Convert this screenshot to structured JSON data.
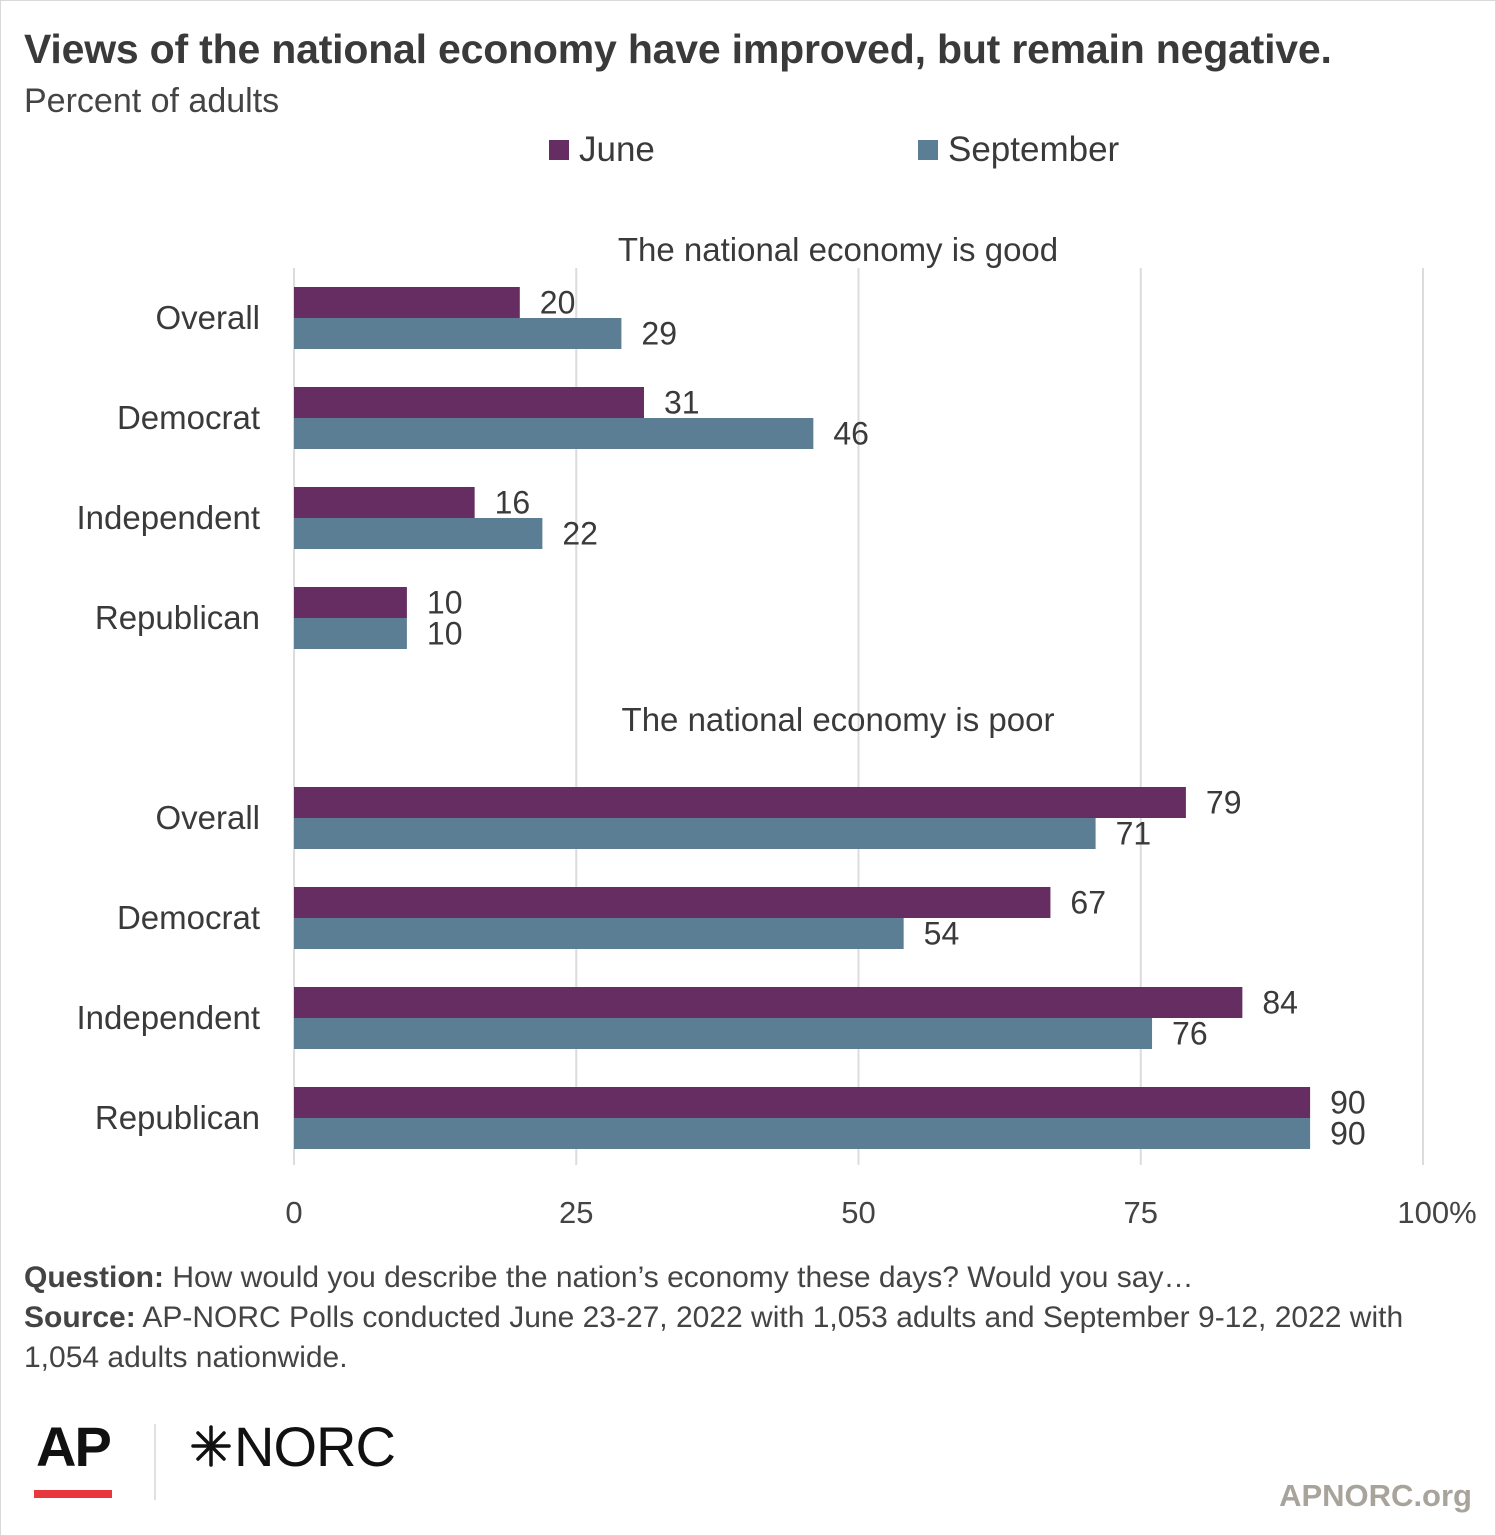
{
  "header": {
    "title": "Views of the national economy have improved, but remain negative.",
    "subtitle": "Percent of adults"
  },
  "colors": {
    "june": "#652d62",
    "september": "#5b7e95",
    "grid": "#dcdcdc",
    "text": "#3a3a3a"
  },
  "chart_data": {
    "type": "bar",
    "orientation": "horizontal",
    "legend": [
      "June",
      "September"
    ],
    "legend_placement": "top",
    "xlim": [
      0,
      100
    ],
    "x_ticks": [
      "0",
      "25",
      "50",
      "75",
      "100%"
    ],
    "grid": true,
    "panels": [
      {
        "label": "The national economy is good",
        "categories": [
          "Overall",
          "Democrat",
          "Independent",
          "Republican"
        ],
        "series": [
          {
            "name": "June",
            "values": [
              20,
              31,
              16,
              10
            ]
          },
          {
            "name": "September",
            "values": [
              29,
              46,
              22,
              10
            ]
          }
        ]
      },
      {
        "label": "The national economy is poor",
        "categories": [
          "Overall",
          "Democrat",
          "Independent",
          "Republican"
        ],
        "series": [
          {
            "name": "June",
            "values": [
              79,
              67,
              84,
              90
            ]
          },
          {
            "name": "September",
            "values": [
              71,
              54,
              76,
              90
            ]
          }
        ]
      }
    ]
  },
  "notes": {
    "question_label": "Question:",
    "question_text": " How would you describe the nation’s economy these days? Would you say…",
    "source_label": "Source:",
    "source_text": " AP-NORC Polls conducted June 23-27, 2022 with 1,053 adults and September 9-12, 2022 with 1,054 adults nationwide."
  },
  "branding": {
    "ap_logo": "AP",
    "norc_logo": "NORC",
    "norc_mark_icon": "asterisk-star-icon",
    "site": "APNORC.org"
  }
}
